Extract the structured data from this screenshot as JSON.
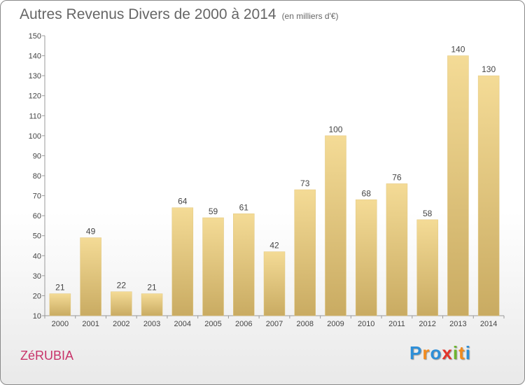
{
  "chart_data": {
    "type": "bar",
    "title": "Autres Revenus Divers de 2000 à 2014",
    "subtitle": "(en milliers d'€)",
    "categories": [
      "2000",
      "2001",
      "2002",
      "2003",
      "2004",
      "2005",
      "2006",
      "2007",
      "2008",
      "2009",
      "2010",
      "2011",
      "2012",
      "2013",
      "2014"
    ],
    "values": [
      21,
      49,
      22,
      21,
      64,
      59,
      61,
      42,
      73,
      100,
      68,
      76,
      58,
      140,
      130
    ],
    "ylim": [
      10,
      150
    ],
    "yticks": [
      10,
      20,
      30,
      40,
      50,
      60,
      70,
      80,
      90,
      100,
      110,
      120,
      130,
      140,
      150
    ],
    "grid": false,
    "bar_color": "#e8cc85"
  },
  "footer": {
    "commune": "ZéRUBIA",
    "logo_letters": [
      "P",
      "r",
      "o",
      "x",
      "i",
      "t",
      "i"
    ],
    "logo_colors": [
      "#2e8fd8",
      "#f28b1e",
      "#2e8fd8",
      "#e4342a",
      "#6cb52d",
      "#f28b1e",
      "#2e8fd8"
    ]
  }
}
